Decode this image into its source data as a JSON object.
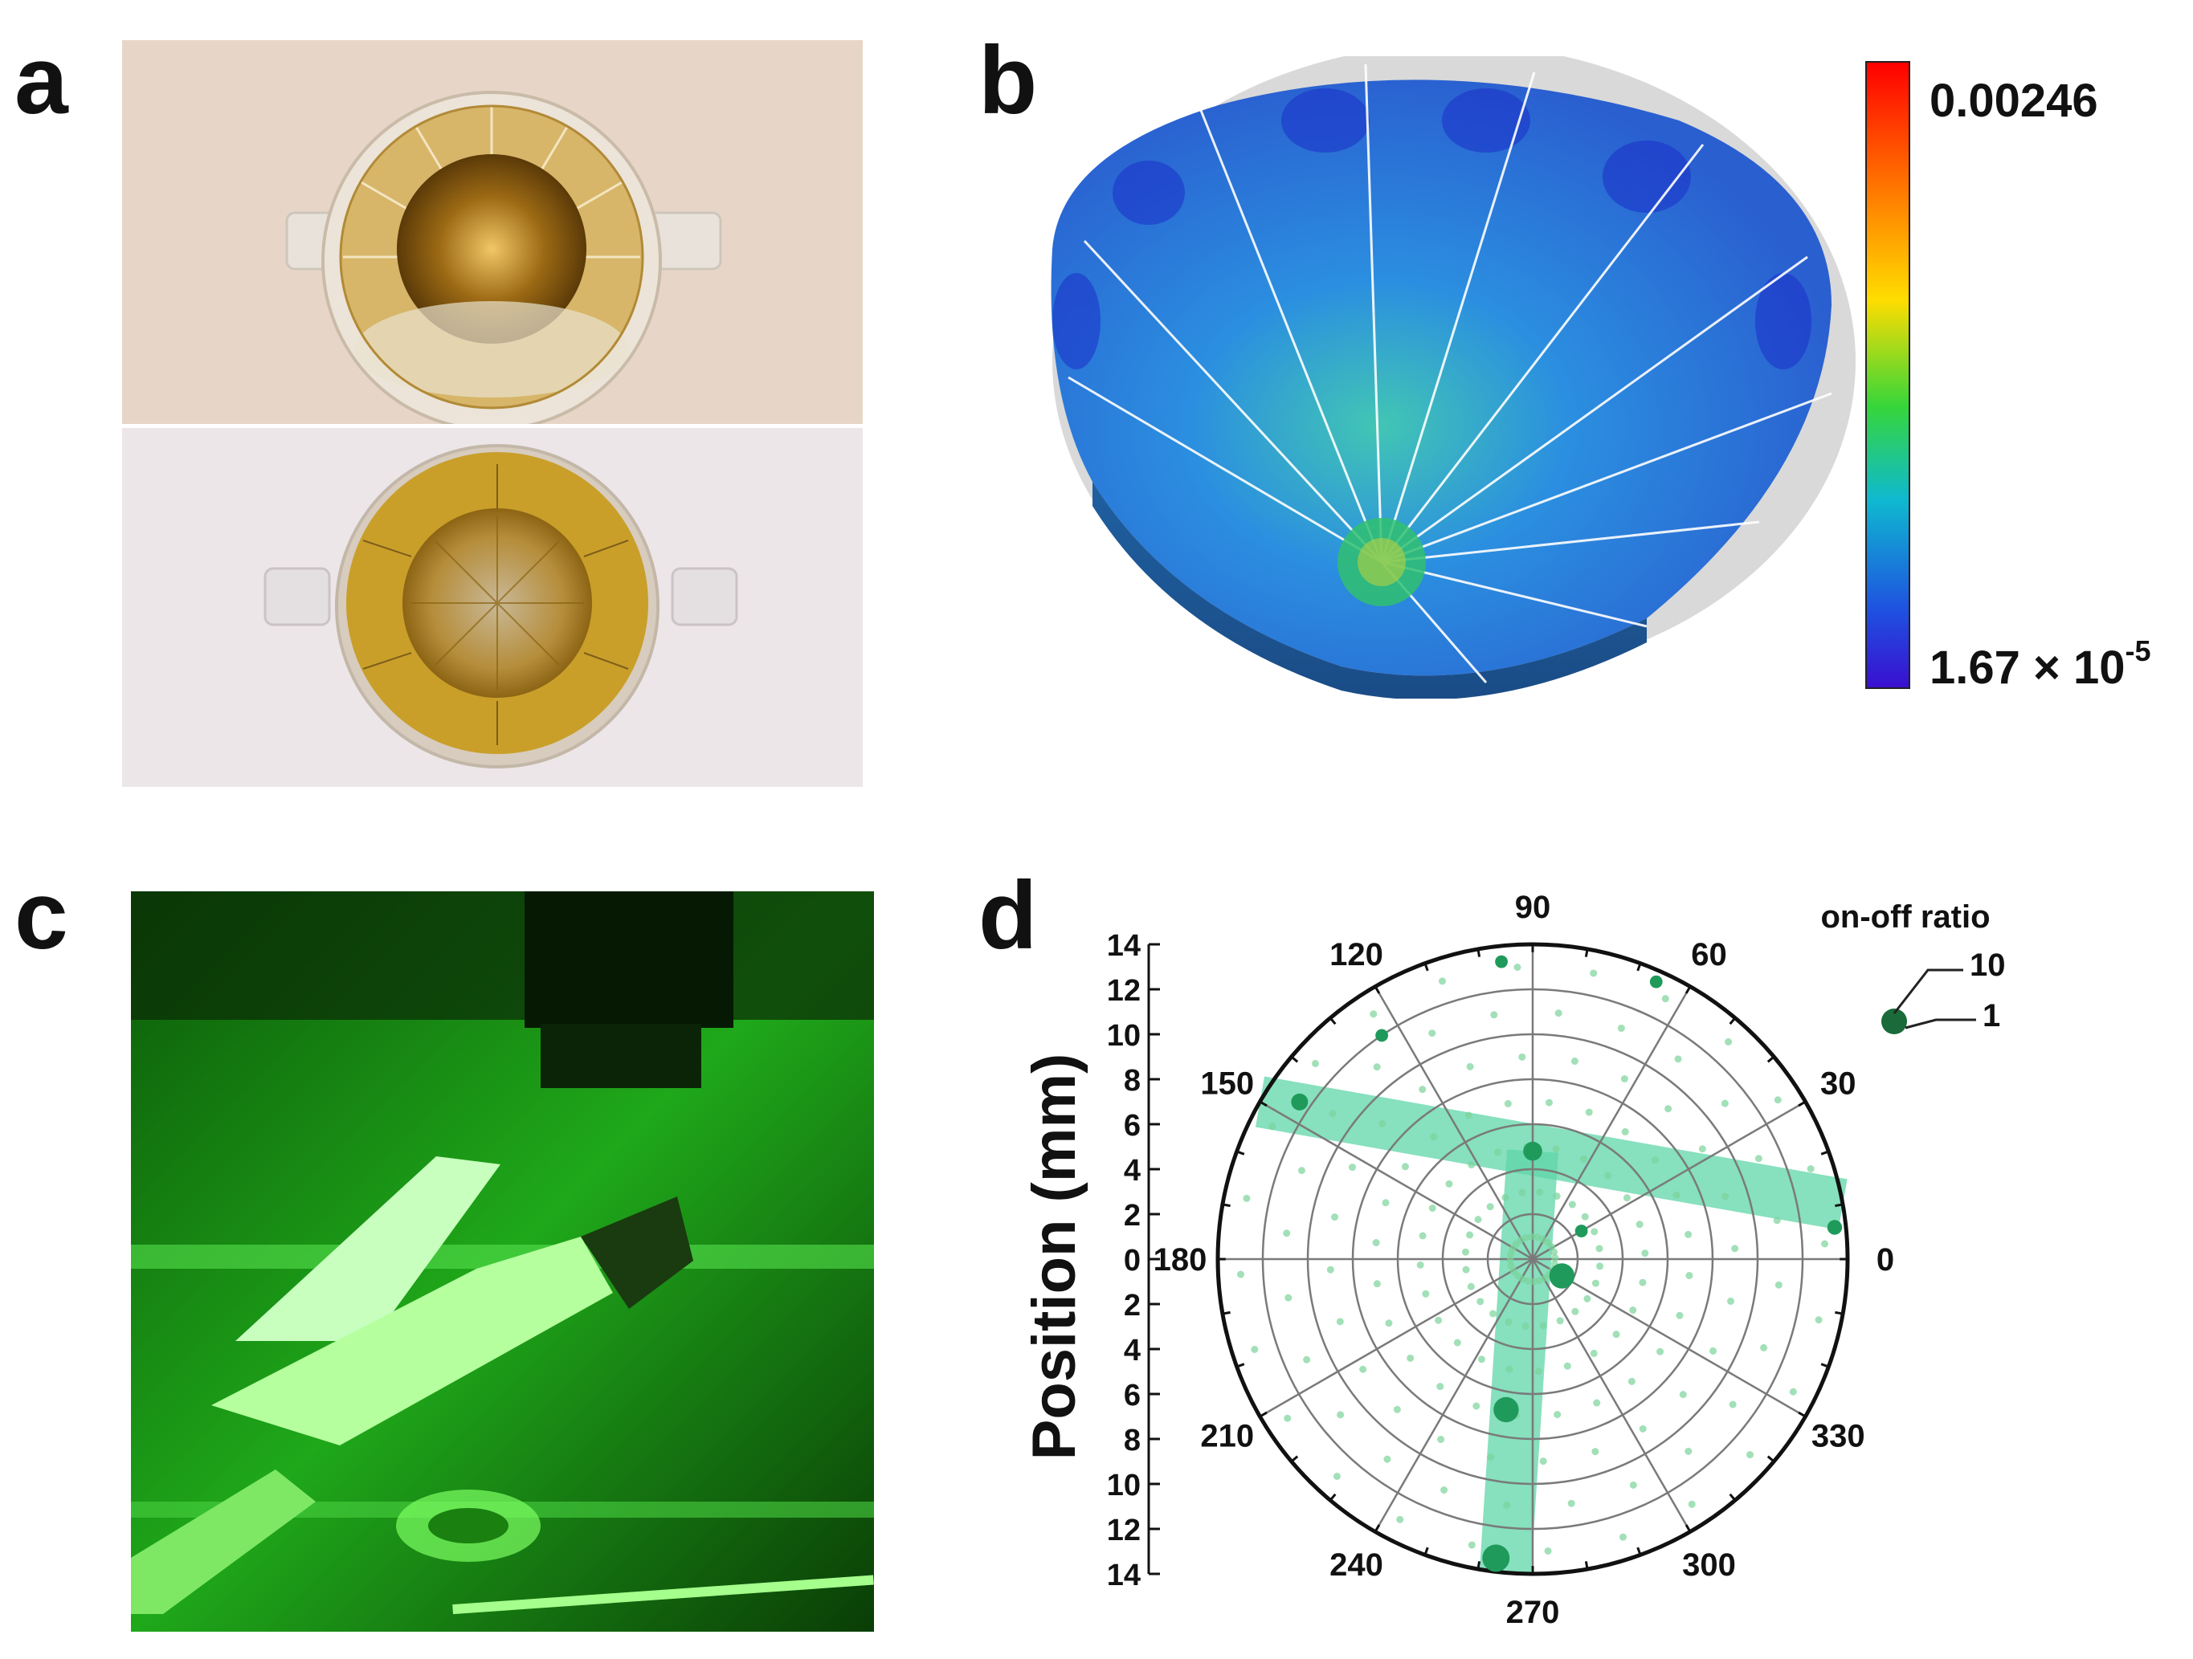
{
  "panels": {
    "a": {
      "letter": "a"
    },
    "b": {
      "letter": "b"
    },
    "c": {
      "letter": "c"
    },
    "d": {
      "letter": "d"
    }
  },
  "colorbar": {
    "max_label": "0.00246",
    "min_label_mantissa": "1.67 × 10",
    "min_label_exponent": "-5"
  },
  "chart_data": {
    "type": "scatter",
    "subtype": "polar",
    "ylabel": "Position (mm)",
    "radial_ticks": [
      0,
      2,
      4,
      6,
      8,
      10,
      12,
      14
    ],
    "radial_range": [
      0,
      14
    ],
    "angular_ticks": [
      0,
      30,
      60,
      90,
      120,
      150,
      180,
      210,
      240,
      270,
      300,
      330
    ],
    "legend": {
      "title": "on-off ratio",
      "entries": [
        {
          "label": "10"
        },
        {
          "label": "1"
        }
      ],
      "placement": "top-right"
    },
    "highlight_bands": [
      {
        "from_angle": 150,
        "to_angle": 10
      },
      {
        "from_angle": 90,
        "to_angle": 265
      }
    ],
    "points": [
      {
        "angle": 90,
        "r": 4.8,
        "ratio": 6
      },
      {
        "angle": 146,
        "r": 12.5,
        "ratio": 5
      },
      {
        "angle": 6,
        "r": 13.5,
        "ratio": 4
      },
      {
        "angle": 330,
        "r": 1.5,
        "ratio": 9
      },
      {
        "angle": 260,
        "r": 6.8,
        "ratio": 9
      },
      {
        "angle": 263,
        "r": 13.4,
        "ratio": 10
      },
      {
        "angle": 96,
        "r": 13.3,
        "ratio": 3
      },
      {
        "angle": 66,
        "r": 13.5,
        "ratio": 3
      },
      {
        "angle": 124,
        "r": 12.0,
        "ratio": 3
      },
      {
        "angle": 30,
        "r": 2.5,
        "ratio": 3
      }
    ],
    "colors": {
      "points": "#1f9a5a",
      "band": "#5fd6a8",
      "grid": "#7a7a7a"
    }
  }
}
